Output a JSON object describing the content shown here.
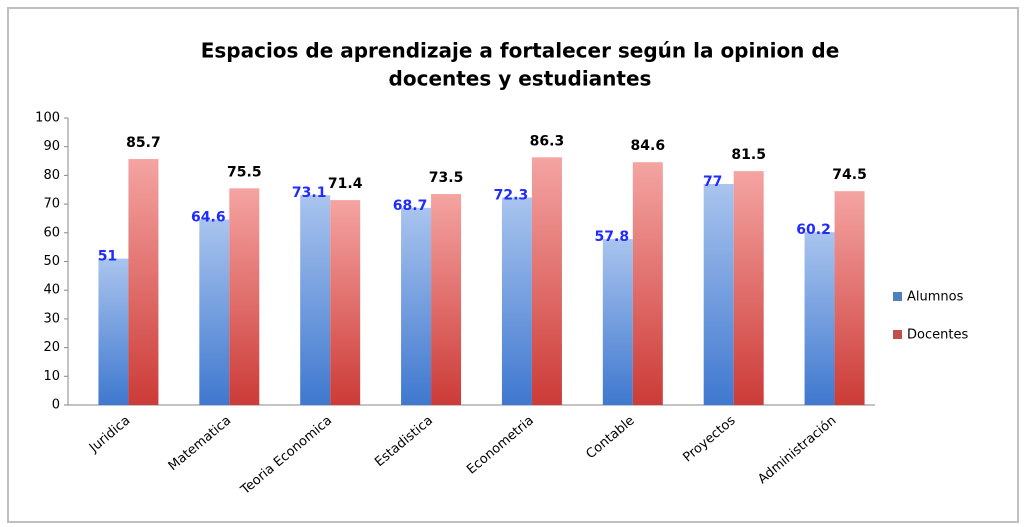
{
  "chart_data": {
    "type": "bar",
    "title": [
      "Espacios de aprendizaje a fortalecer según la opinion de",
      "docentes y estudiantes"
    ],
    "categories": [
      "Juridica",
      "Matematica",
      "Teoria Economica",
      "Estadistica",
      "Econometria",
      "Contable",
      "Proyectos",
      "Administración"
    ],
    "series": [
      {
        "name": "Alumnos",
        "color": "#4f81bd",
        "label_color": "#1f2bff",
        "values": [
          51,
          64.6,
          73.1,
          68.7,
          72.3,
          57.8,
          77,
          60.2
        ]
      },
      {
        "name": "Docentes",
        "color": "#c0504d",
        "label_color": "#000000",
        "values": [
          85.7,
          75.5,
          71.4,
          73.5,
          86.3,
          84.6,
          81.5,
          74.5
        ]
      }
    ],
    "ylim": [
      0,
      100
    ],
    "yticks": [
      0,
      10,
      20,
      30,
      40,
      50,
      60,
      70,
      80,
      90,
      100
    ],
    "grid": false,
    "legend": "right"
  }
}
